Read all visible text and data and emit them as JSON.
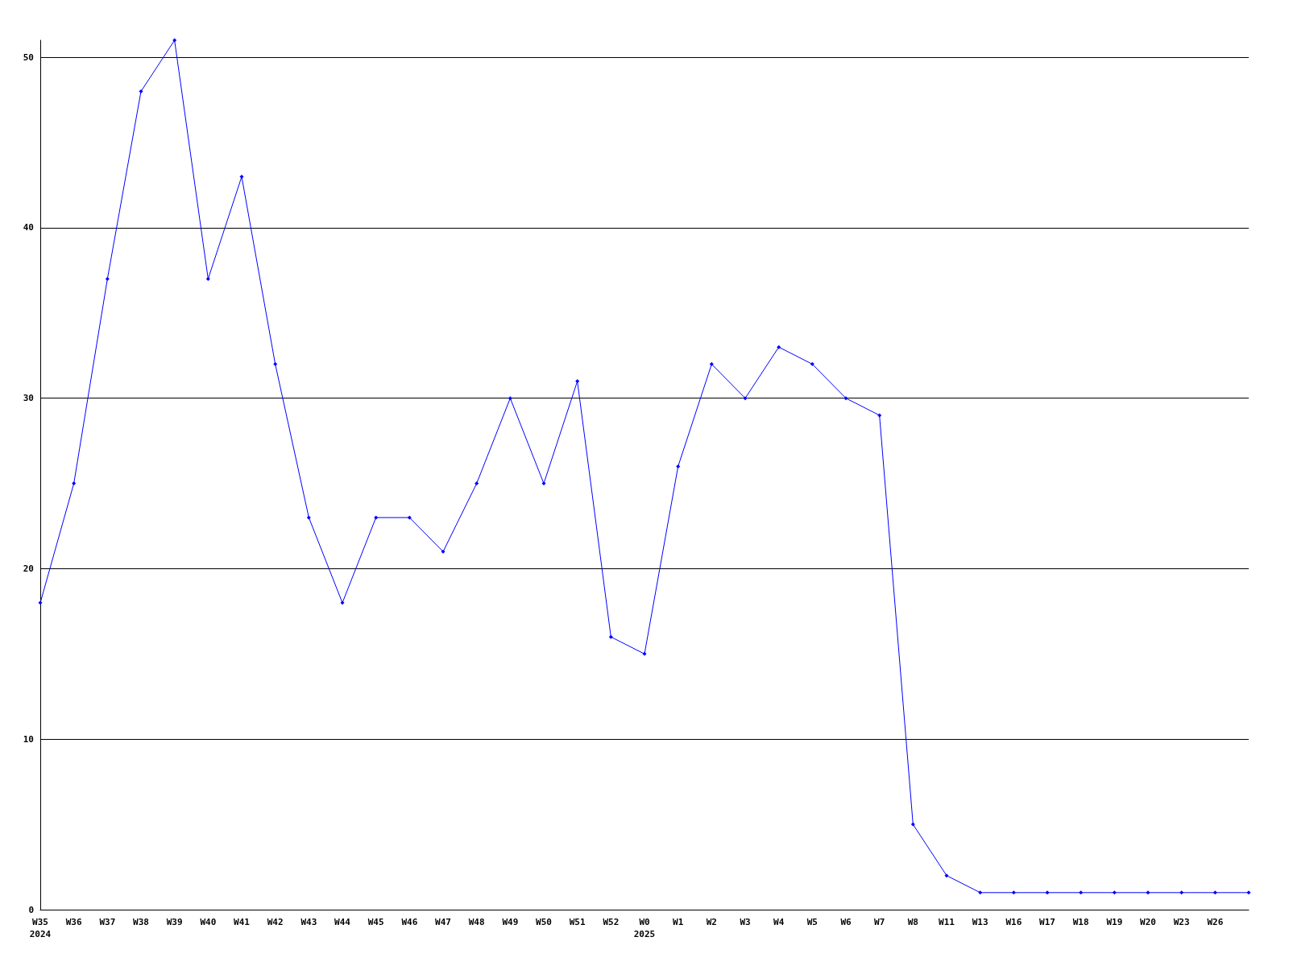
{
  "chart_data": {
    "type": "line",
    "categories": [
      "W35\n2024",
      "W36",
      "W37",
      "W38",
      "W39",
      "W40",
      "W41",
      "W42",
      "W43",
      "W44",
      "W45",
      "W46",
      "W47",
      "W48",
      "W49",
      "W50",
      "W51",
      "W52",
      "W0\n2025",
      "W1",
      "W2",
      "W3",
      "W4",
      "W5",
      "W6",
      "W7",
      "W8",
      "W11",
      "W13",
      "W16",
      "W17",
      "W18",
      "W19",
      "W20",
      "W23",
      "W26",
      null
    ],
    "series": [
      {
        "color": "#0000ff",
        "values": [
          18,
          25,
          37,
          48,
          51,
          37,
          43,
          32,
          23,
          18,
          23,
          23,
          21,
          25,
          30,
          25,
          31,
          16,
          15,
          26,
          32,
          30,
          33,
          32,
          30,
          29,
          5,
          2,
          1,
          1,
          1,
          1,
          1,
          1,
          1,
          1,
          1
        ]
      }
    ],
    "ylim": [
      0,
      51
    ],
    "yticks": [
      0,
      10,
      20,
      30,
      40,
      50
    ],
    "grid": "y",
    "marker": "diamond",
    "line_style": "solid"
  }
}
